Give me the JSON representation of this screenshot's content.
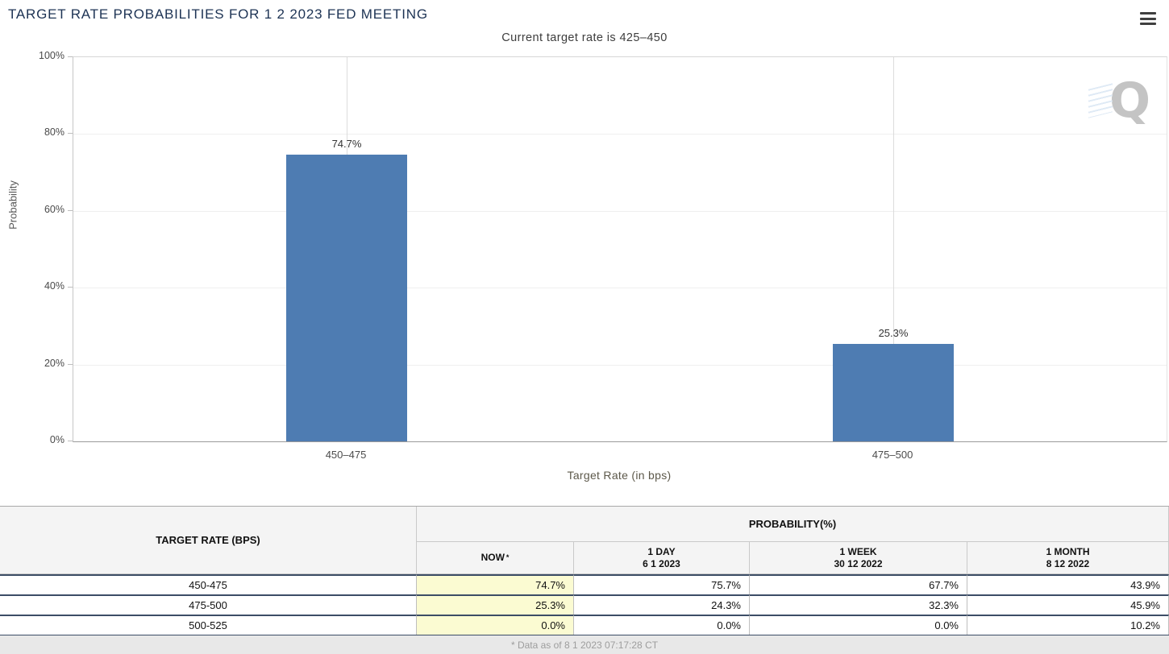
{
  "header": {
    "title": "TARGET RATE PROBABILITIES FOR 1 2 2023 FED MEETING"
  },
  "menu": {
    "icon": "hamburger-icon"
  },
  "chart": {
    "subtitle": "Current target rate is 425–450",
    "watermark_letter": "Q"
  },
  "chart_data": {
    "type": "bar",
    "title": "Current target rate is 425–450",
    "categories": [
      "450–475",
      "475–500"
    ],
    "values": [
      74.7,
      25.3
    ],
    "value_labels": [
      "74.7%",
      "25.3%"
    ],
    "xlabel": "Target Rate (in bps)",
    "ylabel": "Probability",
    "ylim": [
      0,
      100
    ],
    "yticks": [
      "0%",
      "20%",
      "40%",
      "60%",
      "80%",
      "100%"
    ],
    "grid": "vertical line at each category center, faint horizontal tick lines",
    "legend": "none",
    "bar_color": "#4e7cb2"
  },
  "table": {
    "col1_header": "TARGET RATE (BPS)",
    "group_header": "PROBABILITY(%)",
    "subheaders": [
      {
        "line1": "NOW",
        "sup": "*"
      },
      {
        "line1": "1 DAY",
        "line2": "6 1 2023"
      },
      {
        "line1": "1 WEEK",
        "line2": "30 12 2022"
      },
      {
        "line1": "1 MONTH",
        "line2": "8 12 2022"
      }
    ],
    "rows": [
      {
        "rate": "450-475",
        "now": "74.7%",
        "day1": "75.7%",
        "week1": "67.7%",
        "month1": "43.9%"
      },
      {
        "rate": "475-500",
        "now": "25.3%",
        "day1": "24.3%",
        "week1": "32.3%",
        "month1": "45.9%"
      },
      {
        "rate": "500-525",
        "now": "0.0%",
        "day1": "0.0%",
        "week1": "0.0%",
        "month1": "10.2%"
      }
    ]
  },
  "footer": {
    "note": "* Data as of 8 1 2023 07:17:28 CT"
  },
  "colors": {
    "bar": "#4e7cb2",
    "title_text": "#1d3354",
    "now_column_highlight": "#fbfbd2",
    "row_separator": "#3c4d66",
    "footer_bg": "#e8e8e8"
  }
}
